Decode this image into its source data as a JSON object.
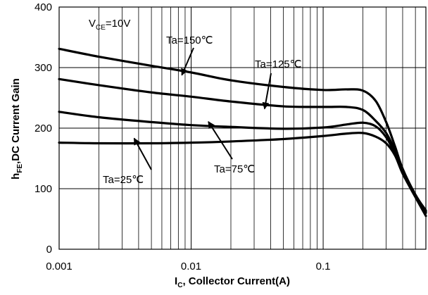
{
  "chart_data": {
    "type": "line",
    "x_scale": "log",
    "xlim": [
      0.001,
      0.6
    ],
    "ylim": [
      0,
      400
    ],
    "grid": true,
    "x_ticks": [
      {
        "value": 0.001,
        "label": "0.001"
      },
      {
        "value": 0.01,
        "label": "0.01"
      },
      {
        "value": 0.1,
        "label": "0.1"
      }
    ],
    "y_ticks": [
      {
        "value": 0,
        "label": "0"
      },
      {
        "value": 100,
        "label": "100"
      },
      {
        "value": 200,
        "label": "200"
      },
      {
        "value": 300,
        "label": "300"
      },
      {
        "value": 400,
        "label": "400"
      }
    ],
    "xlabel": {
      "main": "I",
      "sub": "C",
      "rest": ", Collector Current(A)"
    },
    "ylabel": {
      "main": "h",
      "sub": "FE",
      "rest": ",DC Current Gain"
    },
    "condition": {
      "main": "V",
      "sub": "CE",
      "rest": "=10V"
    },
    "series": [
      {
        "name": "Ta=150℃",
        "points": [
          [
            0.001,
            331
          ],
          [
            0.002,
            318
          ],
          [
            0.005,
            303
          ],
          [
            0.01,
            292
          ],
          [
            0.02,
            279
          ],
          [
            0.05,
            268
          ],
          [
            0.1,
            263
          ],
          [
            0.15,
            264
          ],
          [
            0.2,
            262
          ],
          [
            0.25,
            245
          ],
          [
            0.3,
            210
          ],
          [
            0.35,
            170
          ],
          [
            0.4,
            133
          ],
          [
            0.5,
            90
          ],
          [
            0.6,
            64
          ]
        ]
      },
      {
        "name": "Ta=125℃",
        "points": [
          [
            0.001,
            281
          ],
          [
            0.002,
            271
          ],
          [
            0.005,
            259
          ],
          [
            0.01,
            252
          ],
          [
            0.02,
            244
          ],
          [
            0.05,
            236
          ],
          [
            0.1,
            235
          ],
          [
            0.15,
            235
          ],
          [
            0.2,
            230
          ],
          [
            0.25,
            212
          ],
          [
            0.3,
            192
          ],
          [
            0.35,
            163
          ],
          [
            0.4,
            130
          ],
          [
            0.5,
            90
          ],
          [
            0.6,
            62
          ]
        ]
      },
      {
        "name": "Ta=75℃",
        "points": [
          [
            0.001,
            227
          ],
          [
            0.002,
            218
          ],
          [
            0.005,
            210
          ],
          [
            0.01,
            205
          ],
          [
            0.02,
            202
          ],
          [
            0.05,
            199
          ],
          [
            0.1,
            201
          ],
          [
            0.15,
            206
          ],
          [
            0.2,
            209
          ],
          [
            0.25,
            203
          ],
          [
            0.3,
            185
          ],
          [
            0.35,
            158
          ],
          [
            0.4,
            127
          ],
          [
            0.5,
            88
          ],
          [
            0.6,
            60
          ]
        ]
      },
      {
        "name": "Ta=25℃",
        "points": [
          [
            0.001,
            176
          ],
          [
            0.002,
            175
          ],
          [
            0.005,
            175
          ],
          [
            0.01,
            176
          ],
          [
            0.02,
            178
          ],
          [
            0.05,
            182
          ],
          [
            0.1,
            187
          ],
          [
            0.15,
            191
          ],
          [
            0.2,
            192
          ],
          [
            0.25,
            186
          ],
          [
            0.3,
            175
          ],
          [
            0.35,
            155
          ],
          [
            0.4,
            125
          ],
          [
            0.5,
            86
          ],
          [
            0.6,
            55
          ]
        ]
      }
    ],
    "annotations": [
      {
        "text": "Ta=150℃",
        "series": "Ta=150℃",
        "arrow_at_x": 0.0085
      },
      {
        "text": "Ta=125℃",
        "series": "Ta=125℃",
        "arrow_at_x": 0.036
      },
      {
        "text": "Ta=75℃",
        "series": "Ta=75℃",
        "arrow_at_x": 0.0135
      },
      {
        "text": "Ta=25℃",
        "series": "Ta=25℃",
        "arrow_at_x": 0.0037
      }
    ]
  }
}
